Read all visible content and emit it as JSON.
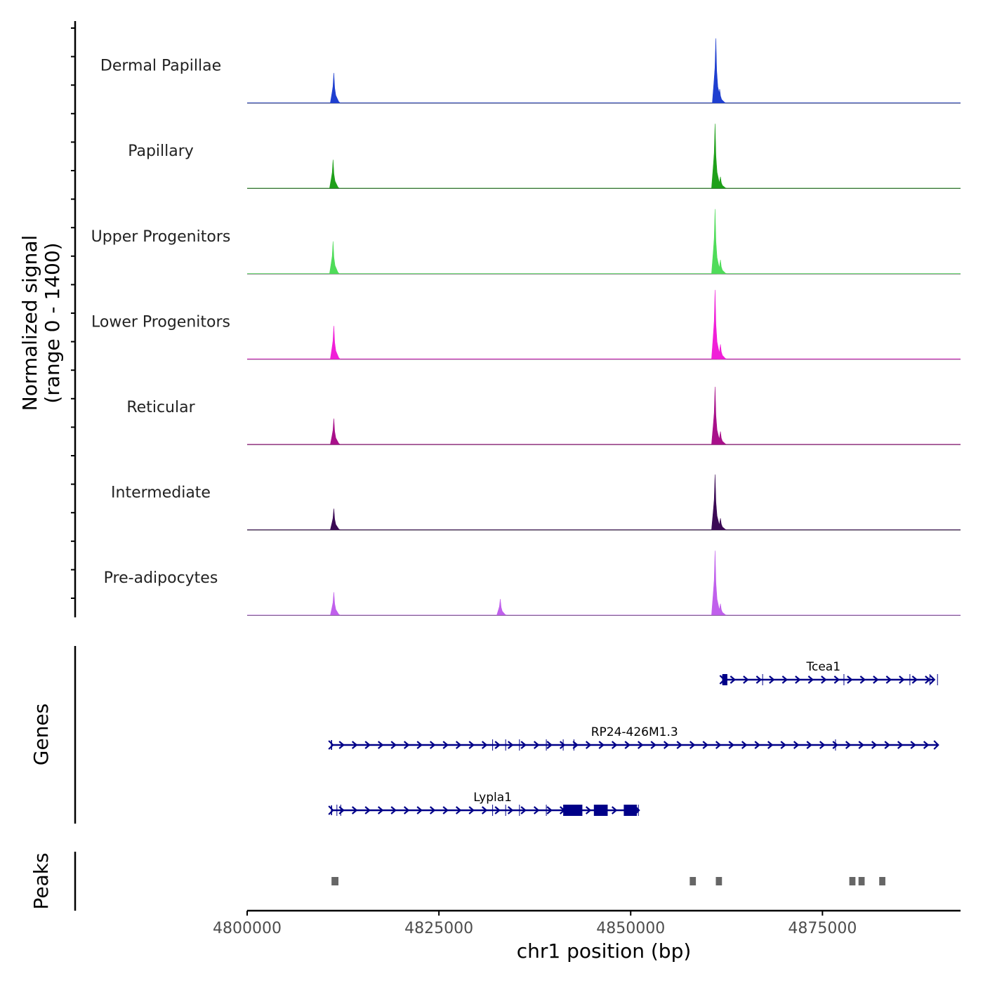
{
  "chart_data": {
    "type": "area",
    "title": "",
    "chromosome": "chr1",
    "xlabel": "chr1 position (bp)",
    "xlim": [
      4800000,
      4893000
    ],
    "x_ticks": [
      4800000,
      4825000,
      4850000,
      4875000
    ],
    "x_tick_labels": [
      "4800000",
      "4825000",
      "4850000",
      "4875000"
    ],
    "signal_ylabel_line1": "Normalized signal",
    "signal_ylabel_line2": "(range 0 - 1400)",
    "signal_range": [
      0,
      1400
    ],
    "series": [
      {
        "name": "Dermal Papillae",
        "color": "#1f3fd0",
        "peaks": [
          {
            "x": 4811300,
            "value": 650
          },
          {
            "x": 4861100,
            "value": 1400
          },
          {
            "x": 4861600,
            "value": 300
          }
        ]
      },
      {
        "name": "Papillary",
        "color": "#1fa01a",
        "peaks": [
          {
            "x": 4811200,
            "value": 620
          },
          {
            "x": 4861000,
            "value": 1400
          },
          {
            "x": 4861700,
            "value": 250
          }
        ]
      },
      {
        "name": "Upper Progenitors",
        "color": "#4fdc59",
        "peaks": [
          {
            "x": 4811200,
            "value": 700
          },
          {
            "x": 4861000,
            "value": 1400
          },
          {
            "x": 4861700,
            "value": 300
          }
        ]
      },
      {
        "name": "Lower Progenitors",
        "color": "#f01fd8",
        "peaks": [
          {
            "x": 4811300,
            "value": 720
          },
          {
            "x": 4861000,
            "value": 1500
          },
          {
            "x": 4861700,
            "value": 320
          }
        ]
      },
      {
        "name": "Reticular",
        "color": "#a8108a",
        "peaks": [
          {
            "x": 4811300,
            "value": 560
          },
          {
            "x": 4861000,
            "value": 1250
          },
          {
            "x": 4861700,
            "value": 280
          }
        ]
      },
      {
        "name": "Intermediate",
        "color": "#3b0a55",
        "peaks": [
          {
            "x": 4811300,
            "value": 460
          },
          {
            "x": 4861000,
            "value": 1200
          },
          {
            "x": 4861700,
            "value": 250
          }
        ]
      },
      {
        "name": "Pre-adipocytes",
        "color": "#c060ec",
        "peaks": [
          {
            "x": 4811300,
            "value": 500
          },
          {
            "x": 4833000,
            "value": 350
          },
          {
            "x": 4861000,
            "value": 1400
          },
          {
            "x": 4861700,
            "value": 250
          }
        ]
      }
    ],
    "genes_label": "Genes",
    "genes": [
      {
        "name": "Tcea1",
        "start": 4862000,
        "end": 4889500,
        "strand": "+",
        "blocks": [
          [
            4862000,
            4862600
          ]
        ],
        "junctions": [
          4862000,
          4867200,
          4877800,
          4886400,
          4889000,
          4890000
        ]
      },
      {
        "name": "RP24-426M1.3",
        "start": 4811000,
        "end": 4890000,
        "strand": "+",
        "blocks": [],
        "junctions": [
          4832000,
          4833700,
          4835500,
          4839000,
          4841200,
          4842600,
          4876700
        ]
      },
      {
        "name": "Lypla1",
        "start": 4811000,
        "end": 4851000,
        "strand": "+",
        "blocks": [
          [
            4841200,
            4843700
          ],
          [
            4845200,
            4847000
          ],
          [
            4849100,
            4850800
          ]
        ],
        "junctions": [
          4811700,
          4812200,
          4832000,
          4833700,
          4835500,
          4839000,
          4851000
        ]
      }
    ],
    "gene_color": "#000088",
    "peaks_label": "Peaks",
    "peaks_color": "#666666",
    "peak_regions": [
      [
        4811000,
        4811900
      ],
      [
        4857700,
        4858500
      ],
      [
        4861100,
        4861900
      ],
      [
        4878500,
        4879300
      ],
      [
        4879700,
        4880500
      ],
      [
        4882400,
        4883200
      ]
    ]
  }
}
